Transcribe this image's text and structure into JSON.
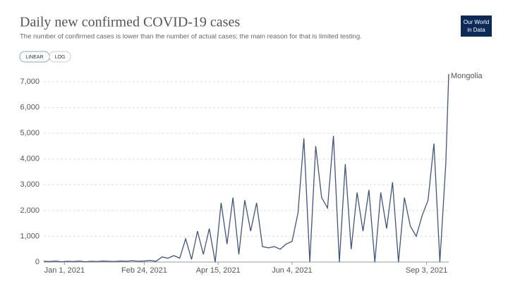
{
  "chart_data": {
    "type": "line",
    "title": "Daily new confirmed COVID-19 cases",
    "subtitle": "The number of confirmed cases is lower than the number of actual cases; the main reason for that is limited testing.",
    "logo": [
      "Our World",
      "in Data"
    ],
    "scale_buttons": [
      "LINEAR",
      "LOG"
    ],
    "x": [
      "2020-12-18",
      "2020-12-22",
      "2020-12-26",
      "2020-12-30",
      "2021-01-03",
      "2021-01-07",
      "2021-01-11",
      "2021-01-15",
      "2021-01-19",
      "2021-01-23",
      "2021-01-27",
      "2021-01-31",
      "2021-02-04",
      "2021-02-08",
      "2021-02-12",
      "2021-02-16",
      "2021-02-20",
      "2021-02-24",
      "2021-02-28",
      "2021-03-04",
      "2021-03-08",
      "2021-03-12",
      "2021-03-16",
      "2021-03-20",
      "2021-03-24",
      "2021-03-28",
      "2021-04-01",
      "2021-04-05",
      "2021-04-09",
      "2021-04-13",
      "2021-04-17",
      "2021-04-21",
      "2021-04-25",
      "2021-04-29",
      "2021-05-03",
      "2021-05-07",
      "2021-05-11",
      "2021-05-15",
      "2021-05-19",
      "2021-05-23",
      "2021-05-27",
      "2021-05-31",
      "2021-06-04",
      "2021-06-08",
      "2021-06-12",
      "2021-06-16",
      "2021-06-20",
      "2021-06-24",
      "2021-06-28",
      "2021-07-02",
      "2021-07-06",
      "2021-07-10",
      "2021-07-14",
      "2021-07-18",
      "2021-07-22",
      "2021-07-26",
      "2021-07-30",
      "2021-08-03",
      "2021-08-07",
      "2021-08-11",
      "2021-08-15",
      "2021-08-19",
      "2021-08-23",
      "2021-08-27",
      "2021-08-31",
      "2021-09-04",
      "2021-09-08",
      "2021-09-12",
      "2021-09-16",
      "2021-09-18"
    ],
    "series": [
      {
        "name": "Mongolia",
        "color": "#3f5580",
        "values": [
          30,
          20,
          40,
          10,
          30,
          20,
          40,
          10,
          30,
          20,
          40,
          30,
          20,
          40,
          30,
          50,
          30,
          40,
          60,
          30,
          200,
          150,
          250,
          150,
          900,
          100,
          1200,
          300,
          1300,
          0,
          2300,
          700,
          2500,
          300,
          2400,
          1200,
          2300,
          600,
          550,
          600,
          500,
          700,
          800,
          1900,
          4800,
          0,
          4500,
          2500,
          2100,
          4900,
          0,
          3800,
          500,
          2700,
          1200,
          2800,
          0,
          2700,
          1300,
          3100,
          0,
          2500,
          1400,
          1000,
          1800,
          2400,
          4600,
          0,
          3800,
          7300
        ]
      }
    ],
    "xlim": [
      "2020-12-18",
      "2021-09-18"
    ],
    "xticks": [
      {
        "value": "2021-01-01",
        "label": "Jan 1, 2021"
      },
      {
        "value": "2021-02-24",
        "label": "Feb 24, 2021"
      },
      {
        "value": "2021-04-15",
        "label": "Apr 15, 2021"
      },
      {
        "value": "2021-06-04",
        "label": "Jun 4, 2021"
      },
      {
        "value": "2021-09-03",
        "label": "Sep 3, 2021"
      }
    ],
    "ylim": [
      0,
      7000
    ],
    "yticks": [
      0,
      {
        "value": 1000,
        "label": "1,000"
      },
      {
        "value": 2000,
        "label": "2,000"
      },
      {
        "value": 3000,
        "label": "3,000"
      },
      {
        "value": 4000,
        "label": "4,000"
      },
      {
        "value": 5000,
        "label": "5,000"
      },
      {
        "value": 6000,
        "label": "6,000"
      },
      {
        "value": 7000,
        "label": "7,000"
      }
    ],
    "grid": true
  }
}
